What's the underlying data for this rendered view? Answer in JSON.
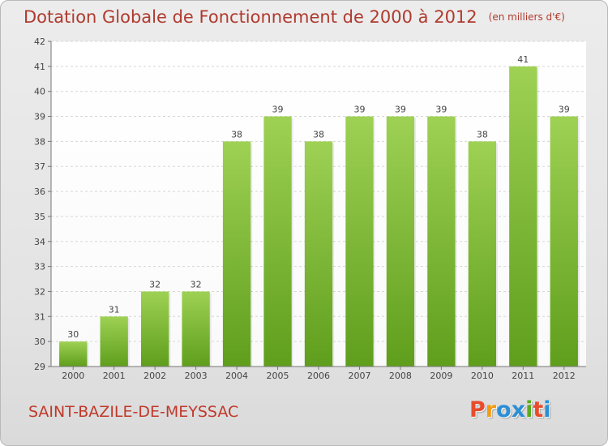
{
  "header": {
    "title": "Dotation Globale de Fonctionnement de 2000 à 2012",
    "unit": "(en milliers d'€)"
  },
  "footer": {
    "commune": "SAINT-BAZILE-DE-MEYSSAC",
    "logo_letters": [
      "P",
      "r",
      "o",
      "x",
      "i",
      "t",
      "i"
    ]
  },
  "colors": {
    "title": "#b03a2e",
    "bar_light": "#9ed154",
    "bar_dark": "#5f9e1c",
    "logo": [
      "#e84c2b",
      "#f39c12",
      "#2c8fd6",
      "#2c8fd6",
      "#5aab1e",
      "#e84c2b",
      "#2c8fd6"
    ]
  },
  "chart_data": {
    "type": "bar",
    "title": "Dotation Globale de Fonctionnement de 2000 à 2012",
    "categories": [
      "2000",
      "2001",
      "2002",
      "2003",
      "2004",
      "2005",
      "2006",
      "2007",
      "2008",
      "2009",
      "2010",
      "2011",
      "2012"
    ],
    "values": [
      30,
      31,
      32,
      32,
      38,
      39,
      38,
      39,
      39,
      39,
      38,
      41,
      39
    ],
    "ylim": [
      29,
      42
    ],
    "yticks": [
      29,
      30,
      31,
      32,
      33,
      34,
      35,
      36,
      37,
      38,
      39,
      40,
      41,
      42
    ],
    "grid": true,
    "legend": "none"
  }
}
